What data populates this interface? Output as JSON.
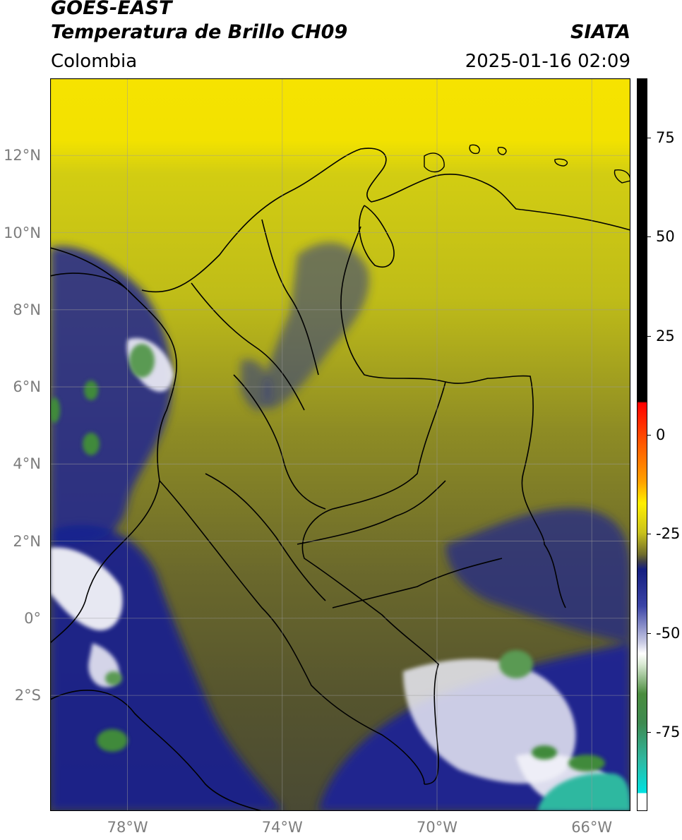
{
  "header": {
    "satellite": "GOES-EAST",
    "product": "Temperatura de Brillo CH09",
    "region": "Colombia",
    "agency": "SIATA",
    "datetime": "2025-01-16 02:09"
  },
  "map": {
    "lon_range": [
      -80.0,
      -65.0
    ],
    "lat_range": [
      -5.0,
      14.0
    ],
    "lon_ticks": [
      {
        "value": -78,
        "label": "78°W"
      },
      {
        "value": -74,
        "label": "74°W"
      },
      {
        "value": -70,
        "label": "70°W"
      },
      {
        "value": -66,
        "label": "66°W"
      }
    ],
    "lat_ticks": [
      {
        "value": 12,
        "label": "12°N"
      },
      {
        "value": 10,
        "label": "10°N"
      },
      {
        "value": 8,
        "label": "8°N"
      },
      {
        "value": 6,
        "label": "6°N"
      },
      {
        "value": 4,
        "label": "4°N"
      },
      {
        "value": 2,
        "label": "2°N"
      },
      {
        "value": 0,
        "label": "0°"
      },
      {
        "value": -2,
        "label": "2°S"
      }
    ],
    "grid": true,
    "colors": {
      "warm_yellow": "#f5e400",
      "olive": "#b8b61c",
      "dark_olive": "#66642c",
      "navy": "#1a1f8c",
      "white_cloud": "#f2f2f8",
      "green": "#3f8a3a",
      "teal": "#2fb8a0"
    }
  },
  "colorbar": {
    "range": [
      -95,
      90
    ],
    "ticks": [
      {
        "value": 75,
        "label": "75"
      },
      {
        "value": 50,
        "label": "50"
      },
      {
        "value": 25,
        "label": "25"
      },
      {
        "value": 0,
        "label": "0"
      },
      {
        "value": -25,
        "label": "-25"
      },
      {
        "value": -50,
        "label": "-50"
      },
      {
        "value": -75,
        "label": "-75"
      }
    ]
  }
}
